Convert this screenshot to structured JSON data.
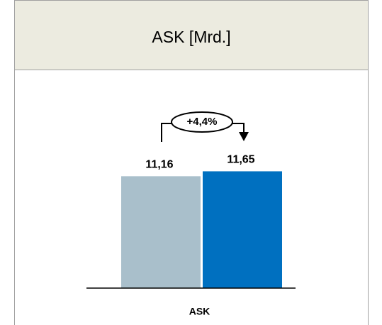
{
  "chart_data": {
    "type": "bar",
    "title": "ASK [Mrd.]",
    "categories": [
      "ASK"
    ],
    "series": [
      {
        "color": "#a9bfcb",
        "values": [
          11.16
        ],
        "value_labels": [
          "11,16"
        ]
      },
      {
        "color": "#0070c0",
        "values": [
          11.65
        ],
        "value_labels": [
          "11,65"
        ]
      }
    ],
    "ylim": [
      0,
      12.6
    ],
    "annotations": [
      "+4,4%"
    ]
  }
}
